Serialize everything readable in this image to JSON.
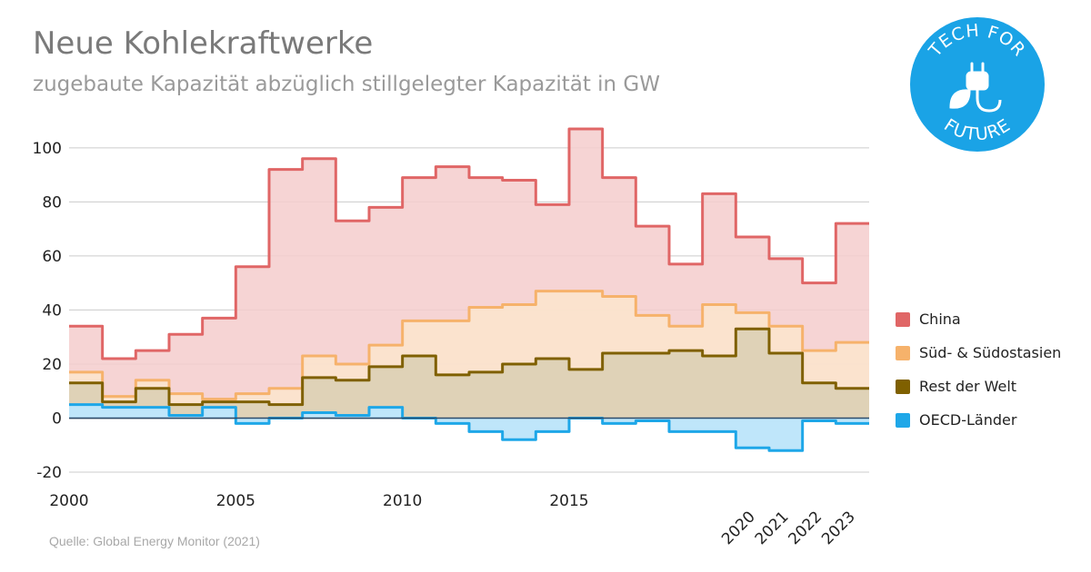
{
  "header": {
    "title": "Neue Kohlekraftwerke",
    "subtitle": "zugebaute Kapazität abzüglich stillgelegter Kapazität in GW"
  },
  "source": "Quelle: Global Energy Monitor (2021)",
  "logo": {
    "top_text": "TECH FOR",
    "bottom_text": "FUTURE",
    "icon": "plug-leaf-icon",
    "color": "#1aa3e6"
  },
  "chart_data": {
    "type": "area",
    "x": [
      2000,
      2001,
      2002,
      2003,
      2004,
      2005,
      2006,
      2007,
      2008,
      2009,
      2010,
      2011,
      2012,
      2013,
      2014,
      2015,
      2016,
      2017,
      2018,
      2019,
      2020,
      2021,
      2022,
      2023
    ],
    "xticks": [
      "2000",
      "2005",
      "2010",
      "2015",
      "2020",
      "2021",
      "2022",
      "2023"
    ],
    "yticks": [
      "-20",
      "0",
      "20",
      "40",
      "60",
      "80",
      "100"
    ],
    "ylim": [
      -20,
      107
    ],
    "xlim": [
      2000,
      2024
    ],
    "series": [
      {
        "name": "China",
        "color": "#e06666",
        "fill": "#f4cccc",
        "values": [
          34,
          22,
          25,
          31,
          37,
          56,
          92,
          96,
          73,
          78,
          89,
          93,
          89,
          88,
          79,
          107,
          89,
          71,
          57,
          83,
          67,
          59,
          50,
          72
        ]
      },
      {
        "name": "Süd- & Südostasien",
        "color": "#f6b26b",
        "fill": "#fce5cd",
        "values": [
          17,
          8,
          14,
          9,
          7,
          9,
          11,
          23,
          20,
          27,
          36,
          36,
          41,
          42,
          47,
          47,
          45,
          38,
          34,
          42,
          39,
          34,
          25,
          28
        ]
      },
      {
        "name": "Rest der Welt",
        "color": "#7f6000",
        "fill": "#d9cfb3",
        "values": [
          13,
          6,
          11,
          5,
          6,
          6,
          5,
          15,
          14,
          19,
          23,
          16,
          17,
          20,
          22,
          18,
          24,
          24,
          25,
          23,
          33,
          24,
          13,
          11
        ]
      },
      {
        "name": "OECD-Länder",
        "color": "#1ea7e8",
        "fill": "#bfe6fa",
        "values": [
          5,
          4,
          4,
          1,
          4,
          -2,
          0,
          2,
          1,
          4,
          0,
          -2,
          -5,
          -8,
          -5,
          0,
          -2,
          -1,
          -5,
          -5,
          -11,
          -12,
          -1,
          -2
        ]
      }
    ],
    "grid": true,
    "legend_position": "right"
  }
}
